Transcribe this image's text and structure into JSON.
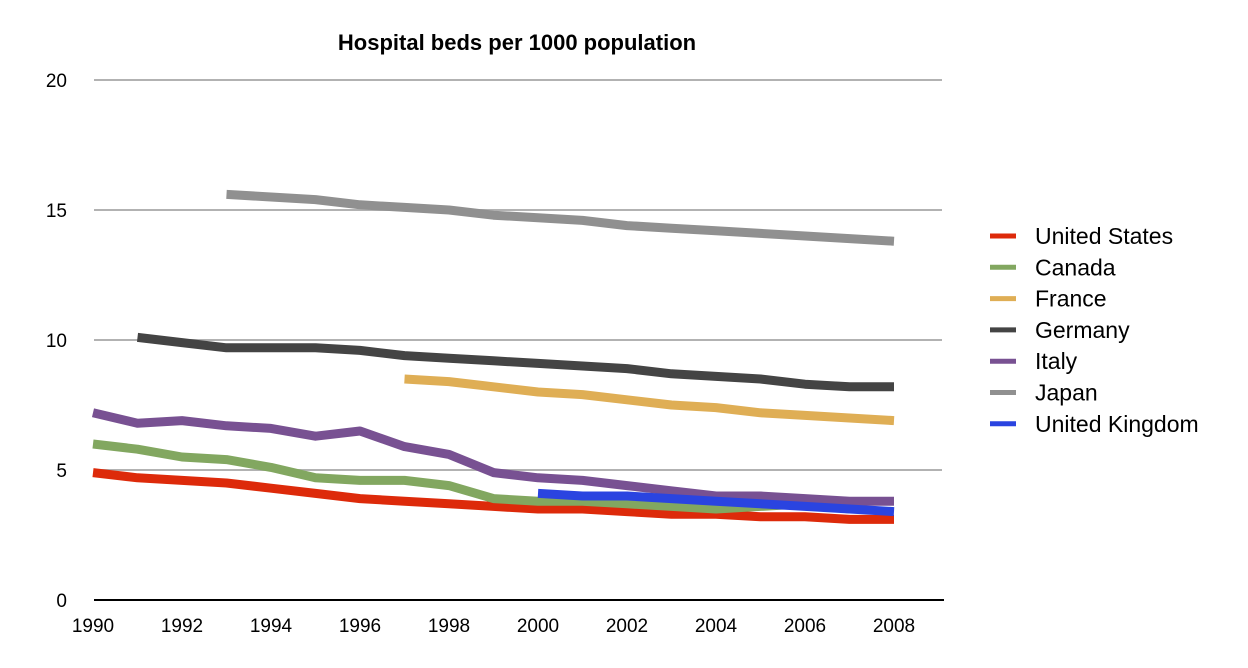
{
  "chart_data": {
    "type": "line",
    "title": "Hospital beds per 1000 population",
    "xlabel": "",
    "ylabel": "",
    "x": [
      1990,
      1991,
      1992,
      1993,
      1994,
      1995,
      1996,
      1997,
      1998,
      1999,
      2000,
      2001,
      2002,
      2003,
      2004,
      2005,
      2006,
      2007,
      2008
    ],
    "xlim": [
      1990,
      2009
    ],
    "ylim": [
      0,
      20
    ],
    "x_ticks": [
      "1990",
      "1992",
      "1994",
      "1996",
      "1998",
      "2000",
      "2002",
      "2004",
      "2006",
      "2008"
    ],
    "y_ticks": [
      "0",
      "5",
      "10",
      "15",
      "20"
    ],
    "grid": true,
    "legend_position": "right",
    "series": [
      {
        "name": "United States",
        "color": "#dd2a0a",
        "start": 1990,
        "values": [
          4.9,
          4.7,
          4.6,
          4.5,
          4.3,
          4.1,
          3.9,
          3.8,
          3.7,
          3.6,
          3.5,
          3.5,
          3.4,
          3.3,
          3.3,
          3.2,
          3.2,
          3.1,
          3.1
        ]
      },
      {
        "name": "Canada",
        "color": "#82a760",
        "start": 1990,
        "values": [
          6.0,
          5.8,
          5.5,
          5.4,
          5.1,
          4.7,
          4.6,
          4.6,
          4.4,
          3.9,
          3.8,
          3.8,
          3.7,
          3.6,
          3.5,
          3.6,
          3.7,
          3.5
        ]
      },
      {
        "name": "France",
        "color": "#dfae55",
        "start": 1997,
        "values": [
          8.5,
          8.4,
          8.2,
          8.0,
          7.9,
          7.7,
          7.5,
          7.4,
          7.2,
          7.1,
          7.0,
          6.9
        ]
      },
      {
        "name": "Germany",
        "color": "#444444",
        "start": 1991,
        "values": [
          10.1,
          9.9,
          9.7,
          9.7,
          9.7,
          9.6,
          9.4,
          9.3,
          9.2,
          9.1,
          9.0,
          8.9,
          8.7,
          8.6,
          8.5,
          8.3,
          8.2,
          8.2
        ]
      },
      {
        "name": "Italy",
        "color": "#785192",
        "start": 1990,
        "values": [
          7.2,
          6.8,
          6.9,
          6.7,
          6.6,
          6.3,
          6.5,
          5.9,
          5.6,
          4.9,
          4.7,
          4.6,
          4.4,
          4.2,
          4.0,
          4.0,
          3.9,
          3.8,
          3.8
        ]
      },
      {
        "name": "Japan",
        "color": "#909090",
        "start": 1993,
        "values": [
          15.6,
          15.5,
          15.4,
          15.2,
          15.1,
          15.0,
          14.8,
          14.7,
          14.6,
          14.4,
          14.3,
          14.2,
          14.1,
          14.0,
          13.9,
          13.8
        ]
      },
      {
        "name": "United Kingdom",
        "color": "#2a44e0",
        "start": 2000,
        "values": [
          4.1,
          4.0,
          4.0,
          3.9,
          3.8,
          3.7,
          3.6,
          3.5,
          3.4
        ]
      }
    ]
  }
}
